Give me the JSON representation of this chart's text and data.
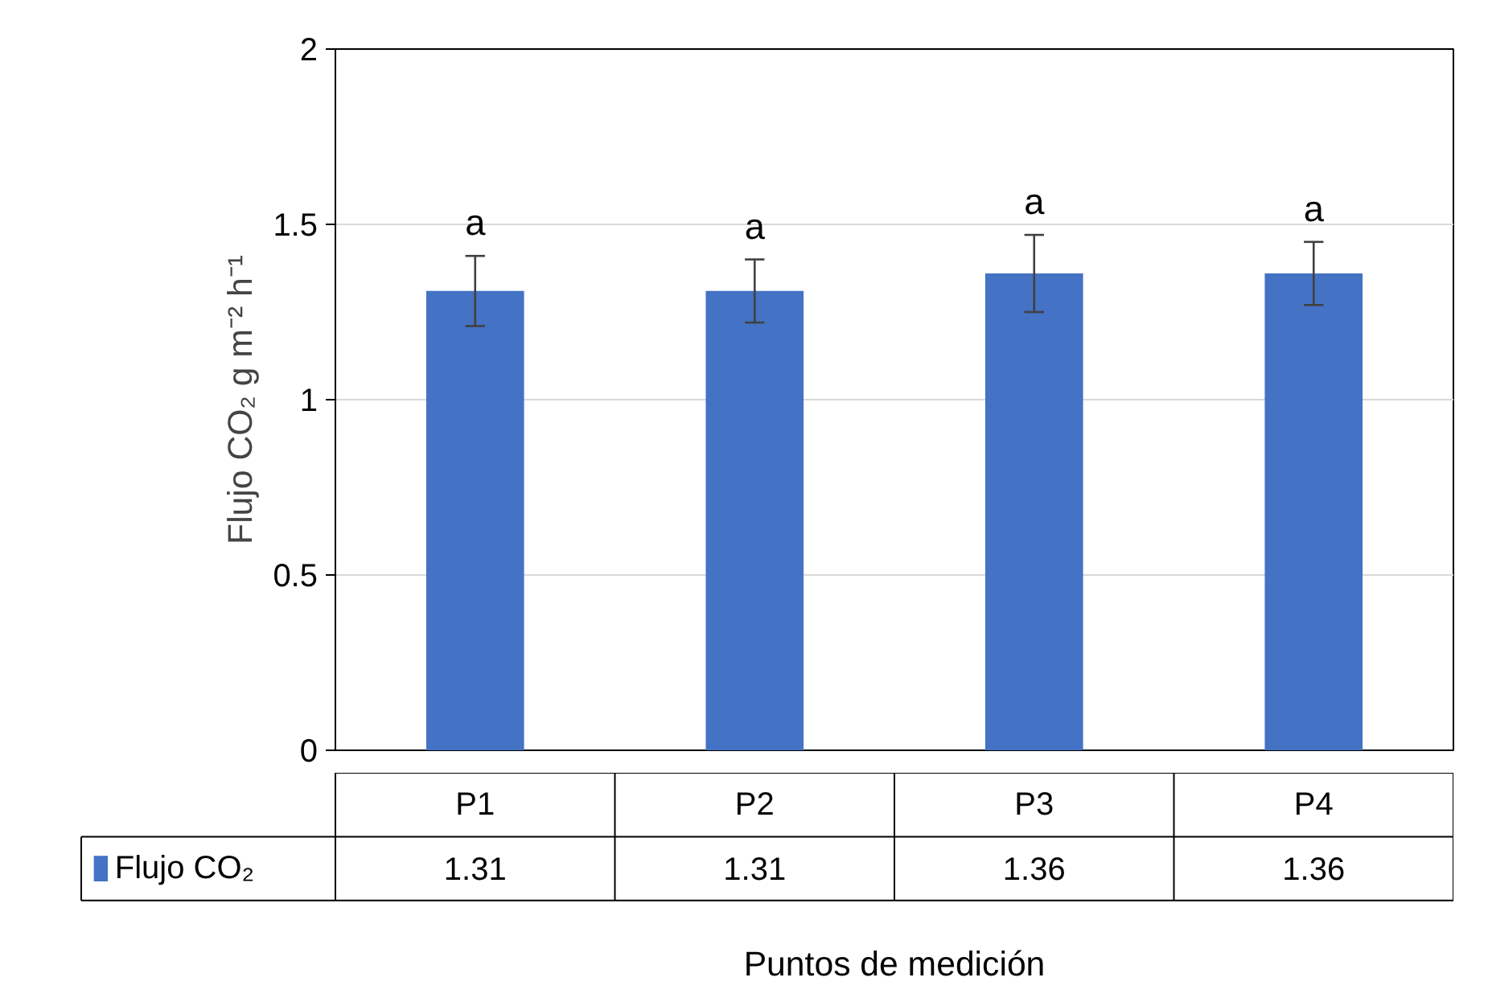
{
  "chart_data": {
    "type": "bar",
    "xlabel": "Puntos de medición",
    "ylabel": "Flujo CO₂ g m⁻² h⁻¹",
    "categories": [
      "P1",
      "P2",
      "P3",
      "P4"
    ],
    "series": [
      {
        "name": "Flujo CO₂",
        "color": "#4472c4",
        "values": [
          1.31,
          1.31,
          1.36,
          1.36
        ],
        "errors": [
          0.1,
          0.09,
          0.11,
          0.09
        ]
      }
    ],
    "ylim": [
      0,
      2
    ],
    "yticks": [
      0,
      0.5,
      1,
      1.5,
      2
    ],
    "grid": "y",
    "legend": "bottom",
    "data_labels": true,
    "annotations": [
      "a",
      "a",
      "a",
      "a"
    ]
  }
}
